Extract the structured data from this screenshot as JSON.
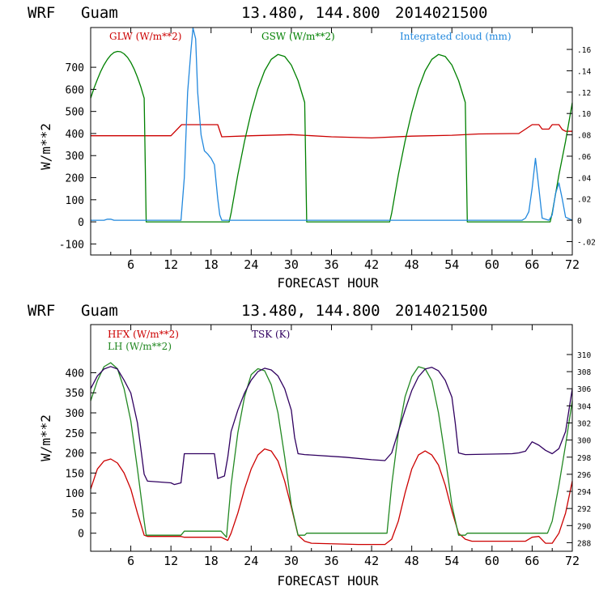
{
  "chart_data": [
    {
      "type": "line",
      "header": {
        "model": "WRF",
        "site": "Guam",
        "coords": "13.480, 144.800",
        "init": "2014021500"
      },
      "xlabel": "FORECAST HOUR",
      "ylabel": "W/m**2",
      "xlim": [
        0,
        72
      ],
      "ylim": [
        -150,
        880
      ],
      "xticks": [
        "6",
        "12",
        "18",
        "24",
        "30",
        "36",
        "42",
        "48",
        "54",
        "60",
        "66",
        "72"
      ],
      "yticks": [
        "-100",
        "0",
        "100",
        "200",
        "300",
        "400",
        "500",
        "600",
        "700"
      ],
      "y2lim": [
        -0.0325,
        0.1805
      ],
      "y2ticks": [
        "-.02",
        "0",
        ".02",
        ".04",
        ".06",
        ".08",
        ".10",
        ".12",
        ".14",
        ".16"
      ],
      "legend": [
        "GLW (W/m**2)",
        "GSW (W/m**2)",
        "Integrated cloud (mm)"
      ],
      "series": [
        {
          "name": "GLW (W/m**2)",
          "color": "#cc0000",
          "axis": "left",
          "x": [
            0,
            12,
            13.6,
            19,
            19.6,
            24,
            30,
            36,
            42,
            48,
            54,
            58,
            63,
            64,
            65,
            66,
            67,
            67.5,
            68,
            68.5,
            69,
            70,
            70.5,
            71,
            72
          ],
          "y": [
            390,
            390,
            440,
            440,
            385,
            390,
            395,
            385,
            380,
            388,
            392,
            398,
            400,
            400,
            420,
            440,
            440,
            420,
            420,
            420,
            440,
            440,
            418,
            410,
            410
          ]
        },
        {
          "name": "GSW (W/m**2)",
          "color": "#008000",
          "axis": "left",
          "x": [
            0,
            0.5,
            1,
            1.5,
            2,
            2.5,
            3,
            3.5,
            4,
            4.5,
            5,
            5.5,
            6,
            6.5,
            7,
            7.5,
            8,
            8.3,
            20.7,
            21,
            22,
            23,
            24,
            25,
            26,
            27,
            28,
            29,
            30,
            31,
            32,
            32.3,
            44.7,
            45,
            46,
            47,
            48,
            49,
            50,
            51,
            52,
            53,
            54,
            55,
            56,
            56.3,
            68.7,
            69,
            70,
            71,
            72
          ],
          "y": [
            560,
            605,
            645,
            681,
            711,
            736,
            755,
            767,
            772,
            770,
            761,
            745,
            722,
            692,
            655,
            611,
            560,
            0,
            0,
            40,
            213,
            365,
            496,
            603,
            684,
            736,
            758,
            749,
            710,
            640,
            541,
            0,
            0,
            40,
            213,
            365,
            496,
            603,
            684,
            736,
            758,
            749,
            710,
            640,
            541,
            0,
            0,
            40,
            213,
            365,
            540
          ]
        },
        {
          "name": "Integrated cloud (mm)",
          "color": "#2288dd",
          "axis": "right",
          "x": [
            0,
            2,
            2.5,
            3,
            3.5,
            13.5,
            14,
            14.5,
            15,
            15.3,
            15.7,
            16,
            16.5,
            17,
            17.5,
            18,
            18.5,
            19,
            19.3,
            19.6,
            64.5,
            65,
            65.5,
            66,
            66.5,
            67,
            67.5,
            68.5,
            69,
            69.5,
            70,
            70.5,
            71,
            72
          ],
          "y": [
            0,
            0,
            0.001,
            0.001,
            0,
            0,
            0.04,
            0.12,
            0.16,
            0.18,
            0.17,
            0.12,
            0.08,
            0.065,
            0.062,
            0.058,
            0.052,
            0.02,
            0.005,
            0,
            0,
            0.002,
            0.008,
            0.03,
            0.058,
            0.03,
            0.002,
            0,
            0.005,
            0.025,
            0.035,
            0.02,
            0.003,
            0
          ]
        }
      ]
    },
    {
      "type": "line",
      "header": {
        "model": "WRF",
        "site": "Guam",
        "coords": "13.480, 144.800",
        "init": "2014021500"
      },
      "xlabel": "FORECAST HOUR",
      "ylabel": "W/m**2",
      "xlim": [
        0,
        72
      ],
      "ylim": [
        -45,
        520
      ],
      "xticks": [
        "6",
        "12",
        "18",
        "24",
        "30",
        "36",
        "42",
        "48",
        "54",
        "60",
        "66",
        "72"
      ],
      "yticks": [
        "0",
        "50",
        "100",
        "150",
        "200",
        "250",
        "300",
        "350",
        "400"
      ],
      "y2lim": [
        287,
        313.5
      ],
      "y2ticks": [
        "288",
        "290",
        "292",
        "294",
        "296",
        "298",
        "300",
        "302",
        "304",
        "306",
        "308",
        "310"
      ],
      "legend": [
        "HFX (W/m**2)",
        "LH  (W/m**2)",
        "TSK (K)"
      ],
      "series": [
        {
          "name": "HFX (W/m**2)",
          "color": "#cc0000",
          "axis": "left",
          "x": [
            0,
            1,
            2,
            3,
            4,
            5,
            6,
            7,
            8,
            8.5,
            13.5,
            14,
            19.5,
            20.5,
            21,
            22,
            23,
            24,
            25,
            26,
            27,
            28,
            29,
            30,
            31,
            32,
            33,
            40,
            44,
            45,
            46,
            47,
            48,
            49,
            50,
            51,
            52,
            53,
            54,
            55,
            56,
            57,
            64,
            65,
            66,
            67,
            68,
            69,
            70,
            71,
            72
          ],
          "y": [
            110,
            160,
            180,
            185,
            175,
            150,
            110,
            50,
            -5,
            -8,
            -8,
            -10,
            -10,
            -18,
            0,
            50,
            110,
            160,
            195,
            210,
            205,
            180,
            130,
            65,
            -5,
            -20,
            -25,
            -28,
            -28,
            -15,
            30,
            100,
            160,
            195,
            205,
            195,
            170,
            120,
            55,
            0,
            -15,
            -20,
            -20,
            -20,
            -10,
            -8,
            -25,
            -25,
            0,
            50,
            130
          ]
        },
        {
          "name": "LH  (W/m**2)",
          "color": "#228822",
          "axis": "left",
          "x": [
            0,
            1,
            2,
            3,
            4,
            5,
            6,
            7,
            8,
            8.3,
            13.5,
            14,
            19.5,
            20.3,
            21,
            22,
            23,
            24,
            25,
            26,
            27,
            28,
            29,
            30,
            31,
            32,
            32.3,
            44.3,
            45,
            46,
            47,
            48,
            49,
            50,
            51,
            52,
            53,
            54,
            55,
            56,
            56.3,
            68.3,
            69,
            70,
            71,
            72
          ],
          "y": [
            330,
            380,
            415,
            425,
            410,
            360,
            280,
            160,
            30,
            -5,
            -5,
            5,
            5,
            -10,
            120,
            250,
            340,
            395,
            410,
            405,
            370,
            300,
            190,
            70,
            -5,
            -5,
            0,
            0,
            120,
            250,
            340,
            390,
            415,
            410,
            380,
            300,
            190,
            70,
            -5,
            -5,
            0,
            0,
            30,
            120,
            220,
            330
          ]
        },
        {
          "name": "TSK (K)",
          "color": "#300060",
          "axis": "right",
          "x": [
            0,
            1,
            2,
            3,
            4,
            5,
            6,
            7,
            7.5,
            8,
            8.5,
            12,
            12.5,
            13.5,
            14,
            18.5,
            19,
            20,
            20.5,
            21,
            22,
            23,
            24,
            25,
            26,
            27,
            28,
            29,
            30,
            30.5,
            31,
            32,
            38,
            42,
            44,
            45,
            46,
            47,
            48,
            49,
            50,
            51,
            52,
            53,
            54,
            54.5,
            55,
            56,
            63,
            64,
            65,
            66,
            67,
            68,
            69,
            70,
            71,
            72
          ],
          "y": [
            306,
            307.5,
            308.3,
            308.6,
            308.3,
            307,
            305.5,
            302,
            299,
            296,
            295.2,
            295,
            294.8,
            295,
            298.4,
            298.4,
            295.5,
            295.8,
            298,
            301,
            303.5,
            305.5,
            307,
            308,
            308.4,
            308.2,
            307.5,
            306,
            303.5,
            300.3,
            298.4,
            298.3,
            298,
            297.7,
            297.6,
            298.5,
            301,
            303.5,
            305.8,
            307.4,
            308.3,
            308.5,
            308.1,
            307,
            305,
            302,
            298.5,
            298.3,
            298.4,
            298.5,
            298.7,
            299.8,
            299.4,
            298.8,
            298.4,
            299,
            301,
            306
          ]
        }
      ]
    }
  ]
}
